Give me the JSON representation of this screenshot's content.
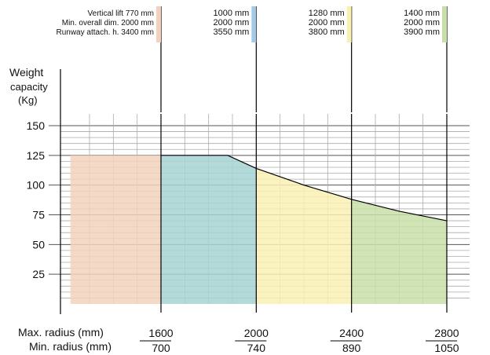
{
  "chart_data": {
    "type": "area",
    "title": "",
    "ylabel_lines": [
      "Weight",
      "capacity",
      "(Kg)"
    ],
    "xlabel_max": "Max. radius (mm)",
    "xlabel_min": "Min. radius (mm)",
    "yticks": [
      "150",
      "125",
      "100",
      "75",
      "50",
      "25"
    ],
    "ytick_values": [
      150,
      125,
      100,
      75,
      50,
      25
    ],
    "ylim": [
      0,
      150
    ],
    "grid": true,
    "x_ticks_max": [
      "1600",
      "2000",
      "2400",
      "2800"
    ],
    "x_ticks_min": [
      "700",
      "740",
      "890",
      "1050"
    ],
    "x_tick_values": [
      1600,
      2000,
      2400,
      2800
    ],
    "xlim": [
      1220,
      2800
    ],
    "series": [
      {
        "x_start": 1220,
        "x_end": 1600,
        "values_x": [
          1220,
          1600
        ],
        "values_y": [
          125,
          125
        ],
        "color": "#f3d2bd"
      },
      {
        "x_start": 1600,
        "x_end": 2000,
        "values_x": [
          1600,
          1880,
          2000
        ],
        "values_y": [
          125,
          125,
          114
        ],
        "color": "#a6d3d2"
      },
      {
        "x_start": 2000,
        "x_end": 2400,
        "values_x": [
          2000,
          2200,
          2400
        ],
        "values_y": [
          114,
          100,
          88
        ],
        "color": "#f9f0b4"
      },
      {
        "x_start": 2400,
        "x_end": 2800,
        "values_x": [
          2400,
          2600,
          2800
        ],
        "values_y": [
          88,
          78,
          70
        ],
        "color": "#c9dfa9"
      }
    ],
    "capacity_line": {
      "x": [
        1600,
        1880,
        2000,
        2200,
        2400,
        2600,
        2800
      ],
      "y": [
        125,
        125,
        114,
        100,
        88,
        78,
        70
      ]
    },
    "specs": [
      {
        "lines": [
          "Vertical lift  770 mm",
          "Min. overall dim. 2000 mm",
          "Runway attach. h. 3400 mm"
        ],
        "color": "#f3d2bd"
      },
      {
        "lines": [
          "1000 mm",
          "2000 mm",
          "3550 mm"
        ],
        "color": "#a6c9e6"
      },
      {
        "lines": [
          "1280 mm",
          "2000 mm",
          "3800 mm"
        ],
        "color": "#f9f0b4"
      },
      {
        "lines": [
          "1400 mm",
          "2000 mm",
          "3900 mm"
        ],
        "color": "#c9dfa9"
      }
    ]
  }
}
